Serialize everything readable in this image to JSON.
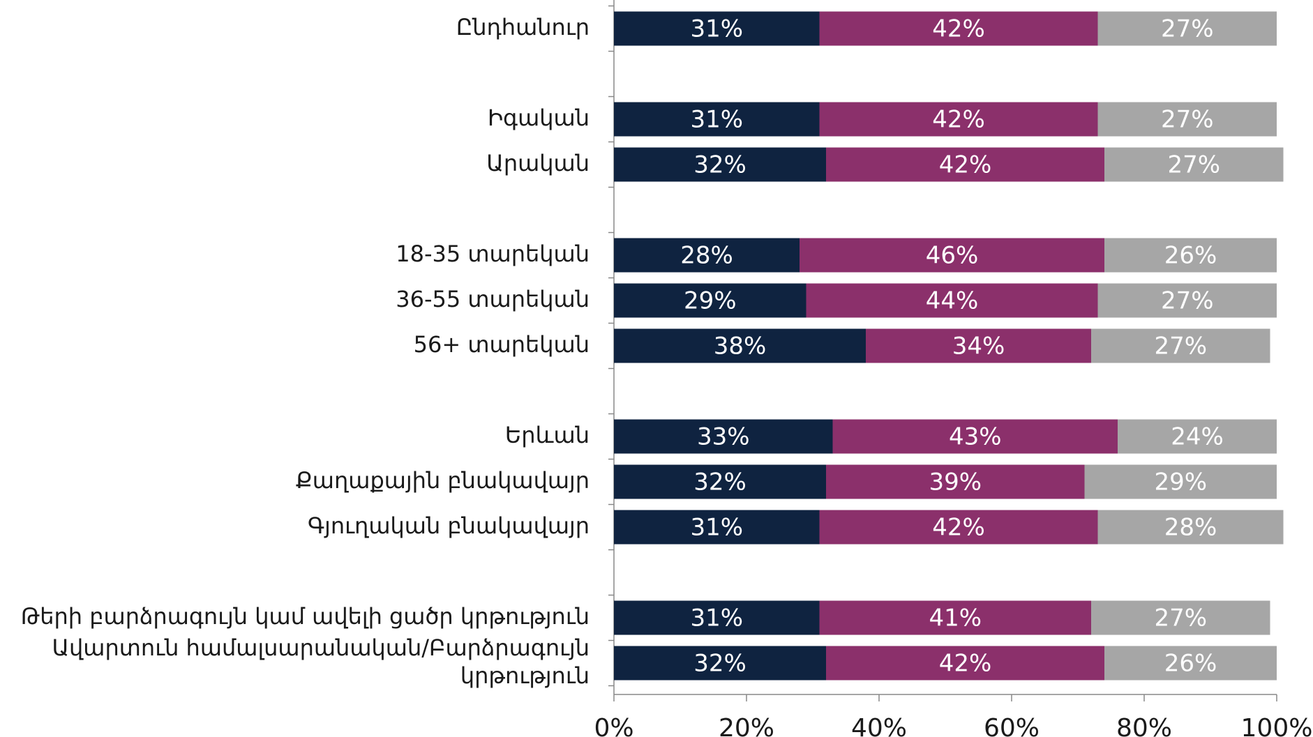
{
  "chart_data": {
    "type": "stacked-barh",
    "categories": [
      "Ընդհանուր",
      null,
      "Իգական",
      "Արական",
      null,
      "18-35 տարեկան",
      "36-55 տարեկան",
      "56+ տարեկան",
      null,
      "Երևան",
      "Քաղաքային բնակավայր",
      "Գյուղական բնակավայր",
      null,
      "Թերի բարձրագույն կամ ավելի ցածր կրթություն",
      "Ավարտուն համալսարանական/Բարձրագույն կրթություն"
    ],
    "series": [
      {
        "color": "#0f2340",
        "values": [
          31,
          null,
          31,
          32,
          null,
          28,
          29,
          38,
          null,
          33,
          32,
          31,
          null,
          31,
          32
        ],
        "value_labels": [
          "31%",
          null,
          "31%",
          "32%",
          null,
          "28%",
          "29%",
          "38%",
          null,
          "33%",
          "32%",
          "31%",
          null,
          "31%",
          "32%"
        ]
      },
      {
        "color": "#8b306b",
        "values": [
          42,
          null,
          42,
          42,
          null,
          46,
          44,
          34,
          null,
          43,
          39,
          42,
          null,
          41,
          42
        ],
        "value_labels": [
          "42%",
          null,
          "42%",
          "42%",
          null,
          "46%",
          "44%",
          "34%",
          null,
          "43%",
          "39%",
          "42%",
          null,
          "41%",
          "42%"
        ]
      },
      {
        "color": "#a6a6a6",
        "values": [
          27,
          null,
          27,
          27,
          null,
          26,
          27,
          27,
          null,
          24,
          29,
          28,
          null,
          27,
          26
        ],
        "value_labels": [
          "27%",
          null,
          "27%",
          "27%",
          null,
          "26%",
          "27%",
          "27%",
          null,
          "24%",
          "29%",
          "28%",
          null,
          "27%",
          "26%"
        ]
      }
    ],
    "xlim": [
      0,
      100
    ],
    "xticks": [
      {
        "value": 0,
        "label": "0%"
      },
      {
        "value": 20,
        "label": "20%"
      },
      {
        "value": 40,
        "label": "40%"
      },
      {
        "value": 60,
        "label": "60%"
      },
      {
        "value": 80,
        "label": "80%"
      },
      {
        "value": 100,
        "label": "100%"
      }
    ]
  }
}
